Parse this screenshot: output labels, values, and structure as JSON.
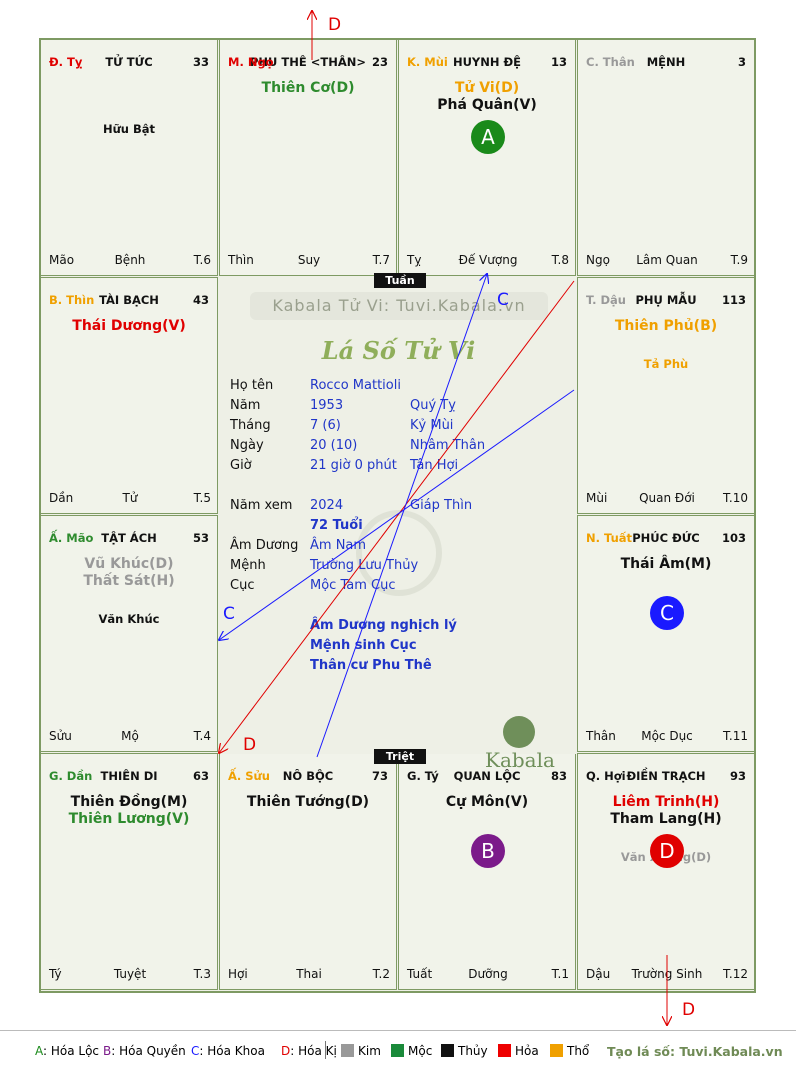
{
  "palaces": [
    {
      "branch": "Đ. Tỵ",
      "branch_color": "#e00000",
      "name": "TỬ TỨC",
      "age": "33",
      "main": [],
      "minor": [
        {
          "t": "Hữu Bật",
          "c": "#111111"
        }
      ],
      "bl": "Mão",
      "bc": "Bệnh",
      "br": "T.6"
    },
    {
      "branch": "M. Ngọ",
      "branch_color": "#e00000",
      "name": "PHU THÊ <THÂN>",
      "age": "23",
      "main": [
        {
          "t": "Thiên Cơ(D)",
          "c": "#2e8b2e"
        }
      ],
      "minor": [],
      "bl": "Thìn",
      "bc": "Suy",
      "br": "T.7"
    },
    {
      "branch": "K. Mùi",
      "branch_color": "#f0a000",
      "name": "HUYNH ĐỆ",
      "age": "13",
      "main": [
        {
          "t": "Tử Vi(D)",
          "c": "#f0a000"
        },
        {
          "t": "Phá Quân(V)",
          "c": "#111111"
        }
      ],
      "minor": [],
      "bl": "Tỵ",
      "bc": "Đế Vượng",
      "br": "T.8",
      "marker": {
        "t": "A",
        "c": "#1a8a1a"
      }
    },
    {
      "branch": "C. Thân",
      "branch_color": "#999999",
      "name": "MỆNH",
      "age": "3",
      "main": [],
      "minor": [],
      "bl": "Ngọ",
      "bc": "Lâm Quan",
      "br": "T.9"
    },
    {
      "branch": "B. Thìn",
      "branch_color": "#f0a000",
      "name": "TÀI BẠCH",
      "age": "43",
      "main": [
        {
          "t": "Thái Dương(V)",
          "c": "#e00000"
        }
      ],
      "minor": [],
      "bl": "Dần",
      "bc": "Tử",
      "br": "T.5"
    },
    {
      "branch": "T. Dậu",
      "branch_color": "#999999",
      "name": "PHỤ MẪU",
      "age": "113",
      "main": [
        {
          "t": "Thiên Phủ(B)",
          "c": "#f0a000"
        }
      ],
      "minor": [
        {
          "t": "Tả Phù",
          "c": "#f0a000"
        }
      ],
      "bl": "Mùi",
      "bc": "Quan Đới",
      "br": "T.10"
    },
    {
      "branch": "Ấ. Mão",
      "branch_color": "#2e8b2e",
      "name": "TẬT ÁCH",
      "age": "53",
      "main": [
        {
          "t": "Vũ Khúc(D)",
          "c": "#999999"
        },
        {
          "t": "Thất Sát(H)",
          "c": "#999999"
        }
      ],
      "minor": [
        {
          "t": "Văn Khúc",
          "c": "#111111"
        }
      ],
      "bl": "Sửu",
      "bc": "Mộ",
      "br": "T.4"
    },
    {
      "branch": "N. Tuất",
      "branch_color": "#f0a000",
      "name": "PHÚC ĐỨC",
      "age": "103",
      "main": [
        {
          "t": "Thái Âm(M)",
          "c": "#111111"
        }
      ],
      "minor": [],
      "bl": "Thân",
      "bc": "Mộc Dục",
      "br": "T.11",
      "marker": {
        "t": "C",
        "c": "#1a1aff"
      }
    },
    {
      "branch": "G. Dần",
      "branch_color": "#2e8b2e",
      "name": "THIÊN DI",
      "age": "63",
      "main": [
        {
          "t": "Thiên Đồng(M)",
          "c": "#111111"
        },
        {
          "t": "Thiên Lương(V)",
          "c": "#2e8b2e"
        }
      ],
      "minor": [],
      "bl": "Tý",
      "bc": "Tuyệt",
      "br": "T.3"
    },
    {
      "branch": "Ấ. Sửu",
      "branch_color": "#f0a000",
      "name": "NÔ BỘC",
      "age": "73",
      "main": [
        {
          "t": "Thiên Tướng(D)",
          "c": "#111111"
        }
      ],
      "minor": [],
      "bl": "Hợi",
      "bc": "Thai",
      "br": "T.2"
    },
    {
      "branch": "G. Tý",
      "branch_color": "#111111",
      "name": "QUAN LỘC",
      "age": "83",
      "main": [
        {
          "t": "Cự Môn(V)",
          "c": "#111111"
        }
      ],
      "minor": [],
      "bl": "Tuất",
      "bc": "Dưỡng",
      "br": "T.1",
      "marker": {
        "t": "B",
        "c": "#7b1a8a"
      }
    },
    {
      "branch": "Q. Hợi",
      "branch_color": "#111111",
      "name": "ĐIỀN TRẠCH",
      "age": "93",
      "main": [
        {
          "t": "Liêm Trinh(H)",
          "c": "#e00000"
        },
        {
          "t": "Tham Lang(H)",
          "c": "#111111"
        }
      ],
      "minor": [
        {
          "t": "Văn Xương(D)",
          "c": "#999999"
        }
      ],
      "bl": "Dậu",
      "bc": "Trường Sinh",
      "br": "T.12",
      "marker": {
        "t": "D",
        "c": "#e00000"
      }
    }
  ],
  "center": {
    "tuan": "Tuần",
    "triet": "Triệt",
    "site_title": "Kabala Tử Vi: Tuvi.Kabala.vn",
    "chart_title": "Lá Số Tử Vi",
    "rows": [
      {
        "l": "Họ tên",
        "v": "Rocco Mattioli",
        "v2": ""
      },
      {
        "l": "Năm",
        "v": "1953",
        "v2": "Quý Tỵ"
      },
      {
        "l": "Tháng",
        "v": "7  (6)",
        "v2": "Kỷ Mùi"
      },
      {
        "l": "Ngày",
        "v": "20  (10)",
        "v2": "Nhâm Thân"
      },
      {
        "l": "Giờ",
        "v": "21 giờ 0 phút",
        "v2": "Tân Hợi"
      }
    ],
    "rows2": [
      {
        "l": "Năm xem",
        "v": "2024",
        "v2": "Giáp Thìn"
      },
      {
        "l": "",
        "v": "72 Tuổi",
        "v2": ""
      },
      {
        "l": "Âm Dương",
        "v": "Âm Nam",
        "v2": ""
      },
      {
        "l": "Mệnh",
        "v": "Trường Lưu Thủy",
        "v2": ""
      },
      {
        "l": "Cục",
        "v": "Mộc Tam Cục",
        "v2": ""
      }
    ],
    "notes": [
      "Âm Dương nghịch lý",
      "Mệnh sinh Cục",
      "Thân cư Phu Thê"
    ],
    "brand": "Kabala"
  },
  "arrow_labels": {
    "d_top": "D",
    "c_upper": "C",
    "c_left": "C",
    "d_left": "D",
    "d_bottom": "D"
  },
  "legend": {
    "hoa": [
      {
        "k": "A",
        "t": ": Hóa Lộc",
        "c": "#1a8a1a"
      },
      {
        "k": "B",
        "t": ": Hóa Quyền",
        "c": "#7b1a8a"
      },
      {
        "k": "C",
        "t": ": Hóa Khoa",
        "c": "#1a1aff"
      },
      {
        "k": "D",
        "t": ": Hóa Kị",
        "c": "#e00000"
      }
    ],
    "elements": [
      {
        "t": "Kim",
        "c": "#999999"
      },
      {
        "t": "Mộc",
        "c": "#1a8a3a"
      },
      {
        "t": "Thủy",
        "c": "#111111"
      },
      {
        "t": "Hỏa",
        "c": "#ee0000"
      },
      {
        "t": "Thổ",
        "c": "#f0a000"
      }
    ],
    "site": "Tạo lá số: Tuvi.Kabala.vn"
  }
}
